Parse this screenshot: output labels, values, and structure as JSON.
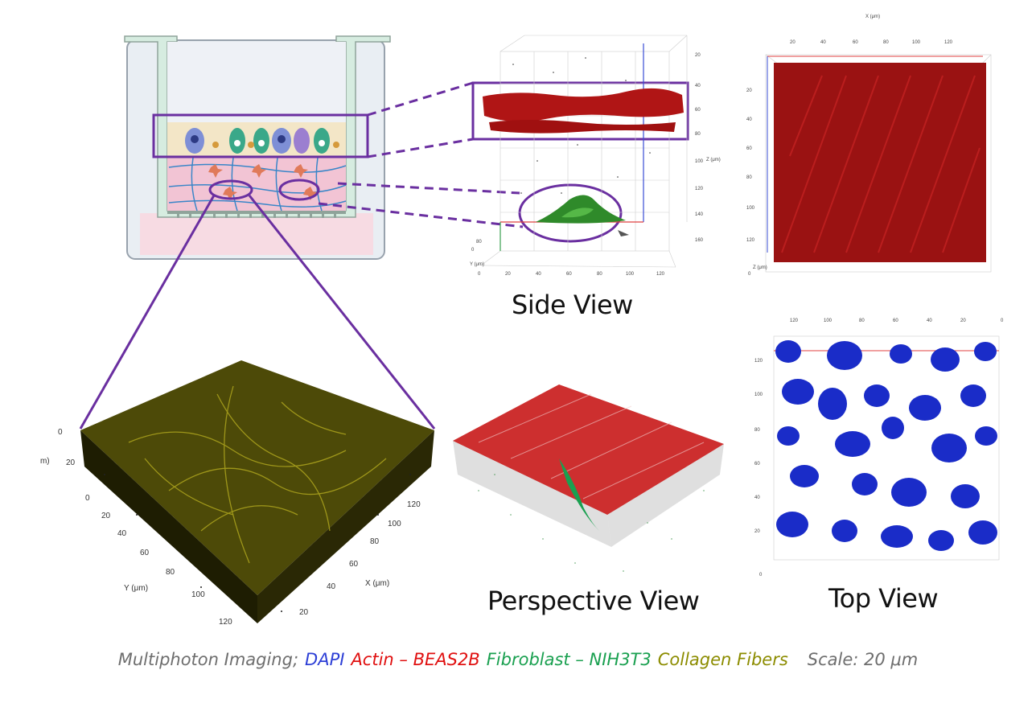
{
  "labels": {
    "side_view": "Side View",
    "perspective_view": "Perspective View",
    "top_view": "Top View"
  },
  "caption": {
    "method": "Multiphoton Imaging;",
    "dapi": "DAPI",
    "actin": "Actin – BEAS2B",
    "fibroblast": "Fibroblast – NIH3T3",
    "collagen": "Collagen Fibers",
    "scale": "Scale: 20 μm"
  },
  "colors": {
    "dapi": "#2d3fd6",
    "actin": "#e01010",
    "fibroblast": "#1aa050",
    "collagen": "#8c8c00",
    "neutral": "#6e6e6e",
    "callout": "#6a2fa0"
  },
  "side_view_axes": {
    "x_unit": "X (μm)",
    "y_unit": "Y (μm)",
    "z_unit": "Z (μm)",
    "z_ticks": [
      "20",
      "40",
      "60",
      "80",
      "100",
      "120",
      "140",
      "160"
    ],
    "x_ticks": [
      "0",
      "20",
      "40",
      "60",
      "80",
      "100",
      "120"
    ],
    "y_ticks": [
      "0",
      "60",
      "80"
    ]
  },
  "top_view_axes": {
    "x_unit": "X (μm)",
    "z_unit": "Z (μm)",
    "x_ticks": [
      "20",
      "40",
      "60",
      "80",
      "100",
      "120"
    ],
    "y_ticks": [
      "20",
      "40",
      "60",
      "80",
      "100",
      "120",
      "0"
    ]
  },
  "collagen_axes": {
    "z_label": "Z (μm)",
    "y_label": "Y (μm)",
    "x_label": "X (μm)",
    "z_ticks": [
      "0",
      "20"
    ],
    "y_ticks": [
      "0",
      "20",
      "40",
      "60",
      "80",
      "100",
      "120"
    ],
    "x_ticks": [
      "120",
      "100",
      "80",
      "60",
      "40",
      "20"
    ]
  },
  "dapi_axes": {
    "top_ticks": [
      "120",
      "100",
      "80",
      "60",
      "40",
      "20",
      "0"
    ],
    "left_ticks": [
      "120",
      "100",
      "80",
      "60",
      "40",
      "20",
      "0"
    ]
  }
}
